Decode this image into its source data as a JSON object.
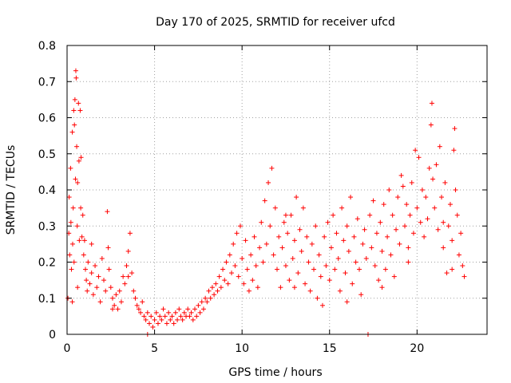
{
  "chart_data": {
    "type": "scatter",
    "title": "Day 170 of 2025, SRMTID for receiver ufcd",
    "xlabel": "GPS time / hours",
    "ylabel": "SRMTID / TECUs",
    "xlim": [
      0,
      24
    ],
    "ylim": [
      0,
      0.8
    ],
    "xticks": [
      0,
      5,
      10,
      15,
      20
    ],
    "yticks": [
      0,
      0.1,
      0.2,
      0.3,
      0.4,
      0.5,
      0.6,
      0.7,
      0.8
    ],
    "xtick_labels": [
      "0",
      "5",
      "10",
      "15",
      "20"
    ],
    "ytick_labels": [
      "0",
      "0.1",
      "0.2",
      "0.3",
      "0.4",
      "0.5",
      "0.6",
      "0.7",
      "0.8"
    ],
    "grid": true,
    "marker": "+",
    "color": "#ff0000",
    "series": [
      {
        "name": "SRMTID",
        "points": [
          [
            0.05,
            0.1
          ],
          [
            0.1,
            0.28
          ],
          [
            0.12,
            0.38
          ],
          [
            0.15,
            0.22
          ],
          [
            0.2,
            0.46
          ],
          [
            0.22,
            0.31
          ],
          [
            0.25,
            0.18
          ],
          [
            0.3,
            0.56
          ],
          [
            0.32,
            0.25
          ],
          [
            0.35,
            0.35
          ],
          [
            0.38,
            0.62
          ],
          [
            0.4,
            0.2
          ],
          [
            0.42,
            0.58
          ],
          [
            0.45,
            0.65
          ],
          [
            0.48,
            0.43
          ],
          [
            0.5,
            0.73
          ],
          [
            0.52,
            0.71
          ],
          [
            0.55,
            0.52
          ],
          [
            0.58,
            0.3
          ],
          [
            0.6,
            0.42
          ],
          [
            0.65,
            0.64
          ],
          [
            0.68,
            0.48
          ],
          [
            0.7,
            0.26
          ],
          [
            0.75,
            0.62
          ],
          [
            0.78,
            0.35
          ],
          [
            0.8,
            0.49
          ],
          [
            0.85,
            0.27
          ],
          [
            0.9,
            0.33
          ],
          [
            0.95,
            0.22
          ],
          [
            1.0,
            0.26
          ],
          [
            1.05,
            0.18
          ],
          [
            1.1,
            0.15
          ],
          [
            1.15,
            0.12
          ],
          [
            1.2,
            0.2
          ],
          [
            1.3,
            0.14
          ],
          [
            1.4,
            0.17
          ],
          [
            1.5,
            0.11
          ],
          [
            1.6,
            0.19
          ],
          [
            1.7,
            0.13
          ],
          [
            1.8,
            0.16
          ],
          [
            1.9,
            0.09
          ],
          [
            2.0,
            0.21
          ],
          [
            2.1,
            0.15
          ],
          [
            2.2,
            0.12
          ],
          [
            2.3,
            0.34
          ],
          [
            2.35,
            0.24
          ],
          [
            2.4,
            0.18
          ],
          [
            2.5,
            0.13
          ],
          [
            2.6,
            0.1
          ],
          [
            2.7,
            0.08
          ],
          [
            2.8,
            0.11
          ],
          [
            2.9,
            0.07
          ],
          [
            3.0,
            0.12
          ],
          [
            3.1,
            0.09
          ],
          [
            3.2,
            0.16
          ],
          [
            3.3,
            0.14
          ],
          [
            3.4,
            0.19
          ],
          [
            3.5,
            0.23
          ],
          [
            3.6,
            0.28
          ],
          [
            3.7,
            0.17
          ],
          [
            3.8,
            0.12
          ],
          [
            3.9,
            0.1
          ],
          [
            4.0,
            0.08
          ],
          [
            4.1,
            0.07
          ],
          [
            4.2,
            0.06
          ],
          [
            4.3,
            0.09
          ],
          [
            4.4,
            0.05
          ],
          [
            4.5,
            0.04
          ],
          [
            4.6,
            0.06
          ],
          [
            4.7,
            0.03
          ],
          [
            4.8,
            0.05
          ],
          [
            4.9,
            0.02
          ],
          [
            5.0,
            0.04
          ],
          [
            5.1,
            0.06
          ],
          [
            5.2,
            0.03
          ],
          [
            5.3,
            0.05
          ],
          [
            5.4,
            0.04
          ],
          [
            5.5,
            0.07
          ],
          [
            5.6,
            0.05
          ],
          [
            5.7,
            0.03
          ],
          [
            5.8,
            0.06
          ],
          [
            5.9,
            0.04
          ],
          [
            6.0,
            0.05
          ],
          [
            6.1,
            0.03
          ],
          [
            6.2,
            0.06
          ],
          [
            6.3,
            0.04
          ],
          [
            6.4,
            0.07
          ],
          [
            6.5,
            0.05
          ],
          [
            6.6,
            0.04
          ],
          [
            6.7,
            0.06
          ],
          [
            6.8,
            0.05
          ],
          [
            6.9,
            0.07
          ],
          [
            7.0,
            0.05
          ],
          [
            7.1,
            0.06
          ],
          [
            7.2,
            0.04
          ],
          [
            7.3,
            0.07
          ],
          [
            7.4,
            0.05
          ],
          [
            7.5,
            0.08
          ],
          [
            7.6,
            0.06
          ],
          [
            7.7,
            0.09
          ],
          [
            7.8,
            0.07
          ],
          [
            7.9,
            0.1
          ],
          [
            8.0,
            0.09
          ],
          [
            8.1,
            0.12
          ],
          [
            8.2,
            0.1
          ],
          [
            8.3,
            0.13
          ],
          [
            8.4,
            0.11
          ],
          [
            8.5,
            0.14
          ],
          [
            8.6,
            0.12
          ],
          [
            8.7,
            0.16
          ],
          [
            8.8,
            0.13
          ],
          [
            8.9,
            0.18
          ],
          [
            9.0,
            0.15
          ],
          [
            9.1,
            0.2
          ],
          [
            9.2,
            0.14
          ],
          [
            9.3,
            0.22
          ],
          [
            9.4,
            0.17
          ],
          [
            9.5,
            0.25
          ],
          [
            9.6,
            0.19
          ],
          [
            9.7,
            0.28
          ],
          [
            9.8,
            0.16
          ],
          [
            9.9,
            0.3
          ],
          [
            10.0,
            0.21
          ],
          [
            10.1,
            0.14
          ],
          [
            10.2,
            0.26
          ],
          [
            10.3,
            0.18
          ],
          [
            10.4,
            0.12
          ],
          [
            10.5,
            0.22
          ],
          [
            10.6,
            0.15
          ],
          [
            10.7,
            0.27
          ],
          [
            10.8,
            0.19
          ],
          [
            10.9,
            0.13
          ],
          [
            11.0,
            0.24
          ],
          [
            11.1,
            0.31
          ],
          [
            11.2,
            0.2
          ],
          [
            11.3,
            0.37
          ],
          [
            11.4,
            0.25
          ],
          [
            11.5,
            0.42
          ],
          [
            11.6,
            0.3
          ],
          [
            11.7,
            0.46
          ],
          [
            11.8,
            0.22
          ],
          [
            11.9,
            0.35
          ],
          [
            12.0,
            0.18
          ],
          [
            12.1,
            0.27
          ],
          [
            12.2,
            0.13
          ],
          [
            12.3,
            0.24
          ],
          [
            12.4,
            0.31
          ],
          [
            12.5,
            0.19
          ],
          [
            12.6,
            0.28
          ],
          [
            12.7,
            0.15
          ],
          [
            12.8,
            0.33
          ],
          [
            12.9,
            0.21
          ],
          [
            13.0,
            0.26
          ],
          [
            13.1,
            0.38
          ],
          [
            13.2,
            0.17
          ],
          [
            13.3,
            0.29
          ],
          [
            13.4,
            0.23
          ],
          [
            13.5,
            0.35
          ],
          [
            13.6,
            0.14
          ],
          [
            13.7,
            0.27
          ],
          [
            13.8,
            0.2
          ],
          [
            13.9,
            0.12
          ],
          [
            14.0,
            0.25
          ],
          [
            14.1,
            0.18
          ],
          [
            14.2,
            0.3
          ],
          [
            14.3,
            0.1
          ],
          [
            14.4,
            0.22
          ],
          [
            14.5,
            0.16
          ],
          [
            14.6,
            0.08
          ],
          [
            14.7,
            0.27
          ],
          [
            14.8,
            0.19
          ],
          [
            14.9,
            0.31
          ],
          [
            15.0,
            0.15
          ],
          [
            15.1,
            0.24
          ],
          [
            15.2,
            0.33
          ],
          [
            15.3,
            0.18
          ],
          [
            15.4,
            0.28
          ],
          [
            15.5,
            0.21
          ],
          [
            15.6,
            0.12
          ],
          [
            15.7,
            0.35
          ],
          [
            15.8,
            0.26
          ],
          [
            15.9,
            0.17
          ],
          [
            16.0,
            0.3
          ],
          [
            16.1,
            0.23
          ],
          [
            16.2,
            0.38
          ],
          [
            16.3,
            0.14
          ],
          [
            16.4,
            0.27
          ],
          [
            16.5,
            0.2
          ],
          [
            16.6,
            0.32
          ],
          [
            16.7,
            0.18
          ],
          [
            16.8,
            0.11
          ],
          [
            16.9,
            0.25
          ],
          [
            17.0,
            0.29
          ],
          [
            17.1,
            0.21
          ],
          [
            17.2,
            0.0
          ],
          [
            17.3,
            0.33
          ],
          [
            17.4,
            0.24
          ],
          [
            17.5,
            0.37
          ],
          [
            17.6,
            0.19
          ],
          [
            17.7,
            0.28
          ],
          [
            17.8,
            0.15
          ],
          [
            17.9,
            0.31
          ],
          [
            18.0,
            0.23
          ],
          [
            18.1,
            0.36
          ],
          [
            18.2,
            0.18
          ],
          [
            18.3,
            0.27
          ],
          [
            18.4,
            0.4
          ],
          [
            18.5,
            0.22
          ],
          [
            18.6,
            0.33
          ],
          [
            18.7,
            0.16
          ],
          [
            18.8,
            0.29
          ],
          [
            18.9,
            0.38
          ],
          [
            19.0,
            0.25
          ],
          [
            19.1,
            0.44
          ],
          [
            19.2,
            0.41
          ],
          [
            19.3,
            0.3
          ],
          [
            19.4,
            0.36
          ],
          [
            19.5,
            0.24
          ],
          [
            19.6,
            0.33
          ],
          [
            19.7,
            0.42
          ],
          [
            19.8,
            0.28
          ],
          [
            19.9,
            0.51
          ],
          [
            20.0,
            0.35
          ],
          [
            20.1,
            0.49
          ],
          [
            20.2,
            0.31
          ],
          [
            20.3,
            0.4
          ],
          [
            20.4,
            0.27
          ],
          [
            20.5,
            0.38
          ],
          [
            20.6,
            0.32
          ],
          [
            20.7,
            0.46
          ],
          [
            20.8,
            0.58
          ],
          [
            20.85,
            0.64
          ],
          [
            20.9,
            0.43
          ],
          [
            21.0,
            0.35
          ],
          [
            21.1,
            0.47
          ],
          [
            21.2,
            0.29
          ],
          [
            21.3,
            0.52
          ],
          [
            21.4,
            0.38
          ],
          [
            21.5,
            0.24
          ],
          [
            21.6,
            0.42
          ],
          [
            21.7,
            0.17
          ],
          [
            21.8,
            0.3
          ],
          [
            21.9,
            0.36
          ],
          [
            22.0,
            0.26
          ],
          [
            22.1,
            0.51
          ],
          [
            22.15,
            0.57
          ],
          [
            22.2,
            0.4
          ],
          [
            22.3,
            0.33
          ],
          [
            22.4,
            0.22
          ],
          [
            22.5,
            0.28
          ],
          [
            22.6,
            0.19
          ],
          [
            22.7,
            0.16
          ],
          [
            0.3,
            0.09
          ],
          [
            0.6,
            0.13
          ],
          [
            1.4,
            0.25
          ],
          [
            2.6,
            0.07
          ],
          [
            3.5,
            0.16
          ],
          [
            4.6,
            0.0
          ],
          [
            12.5,
            0.33
          ],
          [
            13.0,
            0.13
          ],
          [
            16.0,
            0.09
          ],
          [
            18.0,
            0.13
          ],
          [
            19.5,
            0.2
          ],
          [
            21.5,
            0.31
          ],
          [
            22.0,
            0.18
          ]
        ]
      }
    ]
  }
}
